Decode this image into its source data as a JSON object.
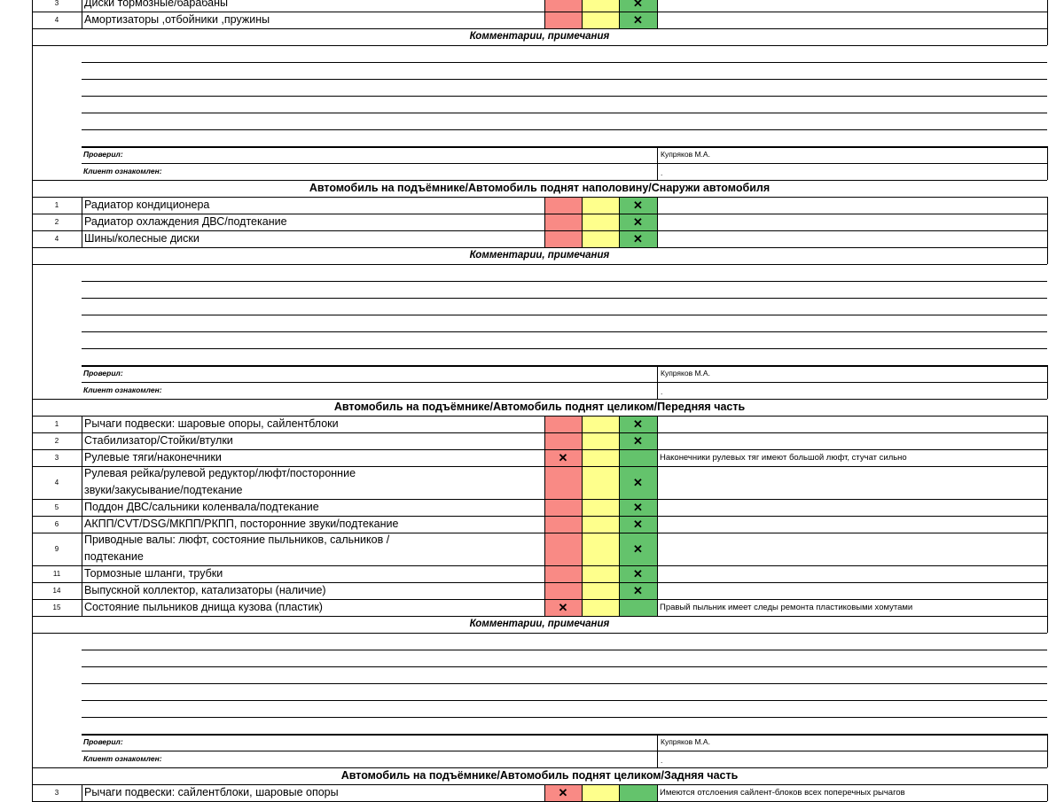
{
  "colors": {
    "red_cell": "#F98A85",
    "yellow_cell": "#FEFF8C",
    "green_cell": "#64C36C",
    "grid_line": "#000000"
  },
  "icons": {
    "check_mark": "x-mark-icon"
  },
  "sections": [
    {
      "title": "",
      "items": [
        {
          "num": "3",
          "name": [
            "Диски тормозные/барабаны"
          ],
          "mark": "green",
          "comment": ""
        },
        {
          "num": "4",
          "name": [
            "Амортизаторы ,отбойники ,пружины"
          ],
          "mark": "green",
          "comment": ""
        }
      ],
      "comments_header": "Комментарии, примечания",
      "checked_label": "Проверил:",
      "checked_value": "Купряков М.А.",
      "client_label": "Клиент ознакомлен:",
      "client_value": "."
    },
    {
      "title": "Автомобиль на подъёмнике/Автомобиль поднят наполовину/Снаружи автомобиля",
      "items": [
        {
          "num": "1",
          "name": [
            "Радиатор кондиционера"
          ],
          "mark": "green",
          "comment": ""
        },
        {
          "num": "2",
          "name": [
            "Радиатор охлаждения ДВС/подтекание"
          ],
          "mark": "green",
          "comment": ""
        },
        {
          "num": "4",
          "name": [
            "Шины/колесные диски"
          ],
          "mark": "green",
          "comment": ""
        }
      ],
      "comments_header": "Комментарии, примечания",
      "checked_label": "Проверил:",
      "checked_value": "Купряков М.А.",
      "client_label": "Клиент ознакомлен:",
      "client_value": "."
    },
    {
      "title": "Автомобиль на подъёмнике/Автомобиль поднят целиком/Передняя часть",
      "items": [
        {
          "num": "1",
          "name": [
            "Рычаги подвески: шаровые опоры, сайлентблоки"
          ],
          "mark": "green",
          "comment": ""
        },
        {
          "num": "2",
          "name": [
            "Стабилизатор/Стойки/втулки"
          ],
          "mark": "green",
          "comment": ""
        },
        {
          "num": "3",
          "name": [
            "Рулевые тяги/наконечники"
          ],
          "mark": "red",
          "comment": "Наконечники рулевых тяг имеют большой люфт, стучат сильно"
        },
        {
          "num": "4",
          "name": [
            "Рулевая рейка/рулевой редуктор/люфт/посторонние",
            "звуки/закусывание/подтекание"
          ],
          "mark": "green",
          "comment": ""
        },
        {
          "num": "5",
          "name": [
            "Поддон ДВС/сальники коленвала/подтекание"
          ],
          "mark": "green",
          "comment": ""
        },
        {
          "num": "6",
          "name": [
            "АКПП/CVT/DSG/МКПП/РКПП, посторонние звуки/подтекание"
          ],
          "mark": "green",
          "comment": ""
        },
        {
          "num": "9",
          "name": [
            "Приводные валы: люфт, состояние пыльников, сальников /",
            "подтекание"
          ],
          "mark": "green",
          "comment": ""
        },
        {
          "num": "11",
          "name": [
            "Тормозные шланги, трубки"
          ],
          "mark": "green",
          "comment": ""
        },
        {
          "num": "14",
          "name": [
            "Выпускной коллектор, катализаторы (наличие)"
          ],
          "mark": "green",
          "comment": ""
        },
        {
          "num": "15",
          "name": [
            "Состояние пыльников днища кузова (пластик)"
          ],
          "mark": "red",
          "comment": "Правый пыльник имеет следы ремонта пластиковыми хомутами"
        }
      ],
      "comments_header": "Комментарии, примечания",
      "checked_label": "Проверил:",
      "checked_value": "Купряков М.А.",
      "client_label": "Клиент ознакомлен:",
      "client_value": "."
    },
    {
      "title": "Автомобиль на подъёмнике/Автомобиль поднят целиком/Задняя часть",
      "items": [
        {
          "num": "3",
          "name": [
            "Рычаги подвески: сайлентблоки, шаровые опоры"
          ],
          "mark": "red",
          "comment": "Имеются отслоения сайлент-блоков всех поперечных рычагов"
        }
      ]
    }
  ],
  "mark_symbol": "✕"
}
